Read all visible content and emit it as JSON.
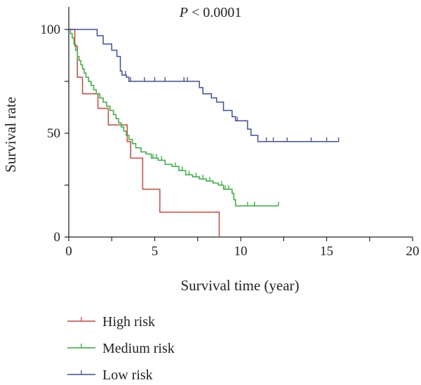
{
  "chart_data": {
    "type": "line",
    "subtype": "kaplan-meier",
    "annotation": {
      "italic": "P",
      "rest": " < 0.0001"
    },
    "xlabel": "Survival time (year)",
    "ylabel": "Survival rate",
    "xlim": [
      0,
      20
    ],
    "ylim": [
      0,
      100
    ],
    "xticks": [
      0,
      5,
      10,
      15,
      20
    ],
    "yticks": [
      0,
      50,
      100
    ],
    "grid": false,
    "legend_position": "bottom-left",
    "series": [
      {
        "name": "High risk",
        "color": "#e8413c",
        "steps": [
          [
            0,
            100
          ],
          [
            0.35,
            92
          ],
          [
            0.5,
            77
          ],
          [
            0.8,
            69
          ],
          [
            1.7,
            62
          ],
          [
            2.3,
            54
          ],
          [
            3.4,
            46
          ],
          [
            3.6,
            38
          ],
          [
            4.3,
            23
          ],
          [
            5.3,
            12
          ],
          [
            8.75,
            0
          ]
        ],
        "censor_x": [
          5.3
        ]
      },
      {
        "name": "Medium risk",
        "color": "#2fb53a",
        "steps": [
          [
            0,
            100
          ],
          [
            0.1,
            98
          ],
          [
            0.2,
            96
          ],
          [
            0.3,
            93
          ],
          [
            0.4,
            90
          ],
          [
            0.5,
            87
          ],
          [
            0.6,
            85
          ],
          [
            0.7,
            83
          ],
          [
            0.8,
            81
          ],
          [
            0.9,
            79
          ],
          [
            1.0,
            77
          ],
          [
            1.15,
            75
          ],
          [
            1.3,
            73
          ],
          [
            1.45,
            71
          ],
          [
            1.6,
            69
          ],
          [
            1.8,
            67
          ],
          [
            2.0,
            65
          ],
          [
            2.2,
            63
          ],
          [
            2.4,
            61
          ],
          [
            2.6,
            59
          ],
          [
            2.75,
            57
          ],
          [
            2.9,
            55
          ],
          [
            3.05,
            53
          ],
          [
            3.2,
            51
          ],
          [
            3.35,
            49
          ],
          [
            3.5,
            47
          ],
          [
            3.7,
            45
          ],
          [
            3.9,
            43
          ],
          [
            4.2,
            41
          ],
          [
            4.5,
            40
          ],
          [
            4.8,
            38
          ],
          [
            5.2,
            37
          ],
          [
            5.6,
            35
          ],
          [
            6.0,
            34
          ],
          [
            6.4,
            32
          ],
          [
            6.8,
            30
          ],
          [
            7.2,
            29
          ],
          [
            7.6,
            28
          ],
          [
            8.0,
            27
          ],
          [
            8.4,
            26
          ],
          [
            8.7,
            25
          ],
          [
            9.0,
            23
          ],
          [
            9.5,
            21
          ],
          [
            9.6,
            18
          ],
          [
            9.7,
            15
          ]
        ],
        "censor_x": [
          4.9,
          5.1,
          5.4,
          6.2,
          6.6,
          7.0,
          7.4,
          7.8,
          8.2,
          8.9,
          9.1,
          9.3,
          10.4,
          10.8,
          12.2
        ],
        "end_x": 12.2
      },
      {
        "name": "Low risk",
        "color": "#3c4fa8",
        "steps": [
          [
            0,
            100
          ],
          [
            1.65,
            97
          ],
          [
            2.0,
            93
          ],
          [
            2.5,
            90
          ],
          [
            2.8,
            87
          ],
          [
            3.0,
            80
          ],
          [
            3.1,
            78
          ],
          [
            3.35,
            77
          ],
          [
            3.5,
            75
          ],
          [
            7.6,
            72
          ],
          [
            7.8,
            69
          ],
          [
            8.3,
            67
          ],
          [
            8.6,
            65
          ],
          [
            9.0,
            61
          ],
          [
            9.5,
            58
          ],
          [
            9.7,
            56
          ],
          [
            10.4,
            52
          ],
          [
            10.6,
            49
          ],
          [
            11.0,
            46
          ]
        ],
        "censor_x": [
          3.3,
          3.6,
          4.4,
          5.0,
          5.6,
          6.7,
          6.9,
          9.8,
          11.5,
          11.9,
          12.7,
          14.1,
          15.0,
          15.7
        ],
        "end_x": 15.7
      }
    ]
  }
}
